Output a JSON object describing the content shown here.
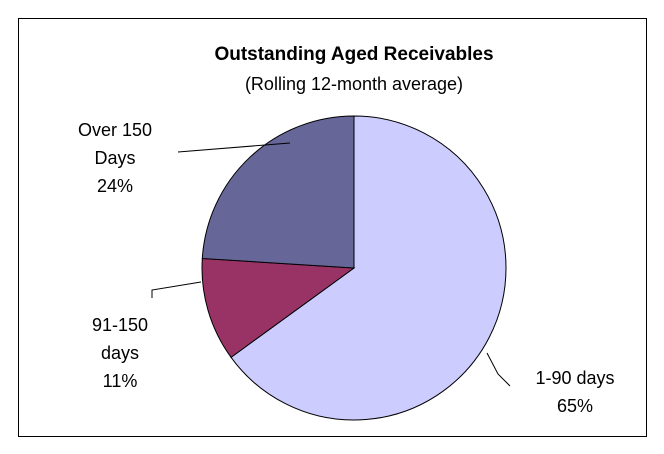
{
  "chart_data": {
    "type": "pie",
    "title": "Outstanding Aged Receivables",
    "subtitle": "(Rolling 12-month average)",
    "categories": [
      "1-90 days",
      "91-150 days",
      "Over 150 Days"
    ],
    "values": [
      65,
      11,
      24
    ],
    "value_labels": [
      "65%",
      "11%",
      "24%"
    ],
    "colors": [
      "#ccccff",
      "#993366",
      "#666699"
    ]
  }
}
